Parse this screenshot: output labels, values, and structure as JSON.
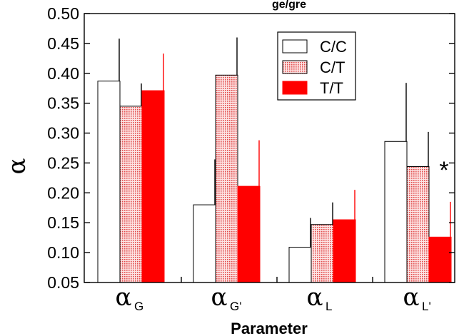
{
  "chart_data": {
    "type": "bar",
    "title": "ge/gre",
    "xlabel": "Parameter",
    "ylabel": "α",
    "ylim": [
      0.05,
      0.5
    ],
    "yticks": [
      "0.05",
      "0.10",
      "0.15",
      "0.20",
      "0.25",
      "0.30",
      "0.35",
      "0.40",
      "0.45",
      "0.50"
    ],
    "categories": [
      {
        "main": "α",
        "sub": "G"
      },
      {
        "main": "α",
        "sub": "G'"
      },
      {
        "main": "α",
        "sub": "L"
      },
      {
        "main": "α",
        "sub": "L'"
      }
    ],
    "series": [
      {
        "name": "C/C",
        "fill": "white",
        "values": [
          0.387,
          0.18,
          0.109,
          0.286
        ],
        "errors": [
          0.071,
          0.076,
          0.049,
          0.098
        ]
      },
      {
        "name": "C/T",
        "fill": "dotted",
        "values": [
          0.345,
          0.397,
          0.147,
          0.244
        ],
        "errors": [
          0.038,
          0.063,
          0.037,
          0.058
        ]
      },
      {
        "name": "T/T",
        "fill": "red",
        "values": [
          0.371,
          0.211,
          0.155,
          0.126
        ],
        "errors": [
          0.062,
          0.077,
          0.05,
          0.059
        ]
      }
    ],
    "colors": {
      "red": "#ff0000",
      "dot": "#e24a4a",
      "dot_bg": "#fde5e5"
    },
    "annotations": [
      {
        "text": "*",
        "category_index": 3
      }
    ],
    "legend_position": "top-right"
  }
}
